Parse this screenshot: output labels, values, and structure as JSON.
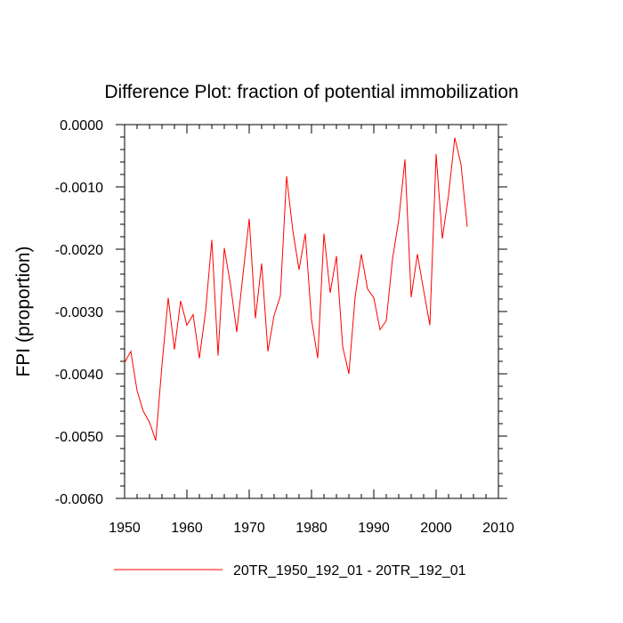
{
  "chart_data": {
    "type": "line",
    "title": "Difference Plot: fraction of potential immobilization",
    "xlabel": "",
    "ylabel": "FPI  (proportion)",
    "xlim": [
      1950,
      2010
    ],
    "ylim": [
      -0.006,
      0.0
    ],
    "xticks": [
      1950,
      1960,
      1970,
      1980,
      1990,
      2000,
      2010
    ],
    "yticks": [
      -0.006,
      -0.005,
      -0.004,
      -0.003,
      -0.002,
      -0.001,
      0.0
    ],
    "xtick_labels": [
      "1950",
      "1960",
      "1970",
      "1980",
      "1990",
      "2000",
      "2010"
    ],
    "ytick_labels": [
      "-0.0060",
      "-0.0050",
      "-0.0040",
      "-0.0030",
      "-0.0020",
      "-0.0010",
      "0.0000"
    ],
    "grid": false,
    "legend": "bottom",
    "series": [
      {
        "name": "20TR_1950_192_01 - 20TR_192_01",
        "color": "#ff0000",
        "x": [
          1950,
          1951,
          1952,
          1953,
          1954,
          1955,
          1956,
          1957,
          1958,
          1959,
          1960,
          1961,
          1962,
          1963,
          1964,
          1965,
          1966,
          1967,
          1968,
          1969,
          1970,
          1971,
          1972,
          1973,
          1974,
          1975,
          1976,
          1977,
          1978,
          1979,
          1980,
          1981,
          1982,
          1983,
          1984,
          1985,
          1986,
          1987,
          1988,
          1989,
          1990,
          1991,
          1992,
          1993,
          1994,
          1995,
          1996,
          1997,
          1998,
          1999,
          2000,
          2001,
          2002,
          2003,
          2004,
          2005
        ],
        "values": [
          -0.00382,
          -0.00364,
          -0.00427,
          -0.0046,
          -0.00478,
          -0.00507,
          -0.00386,
          -0.00278,
          -0.00361,
          -0.00283,
          -0.00322,
          -0.00305,
          -0.00375,
          -0.003,
          -0.00185,
          -0.00371,
          -0.00198,
          -0.00257,
          -0.00333,
          -0.00241,
          -0.00151,
          -0.00311,
          -0.00223,
          -0.00364,
          -0.00306,
          -0.00275,
          -0.00083,
          -0.0017,
          -0.00233,
          -0.00175,
          -0.00313,
          -0.00375,
          -0.00175,
          -0.0027,
          -0.00211,
          -0.00356,
          -0.004,
          -0.00277,
          -0.00208,
          -0.00264,
          -0.00278,
          -0.00329,
          -0.00315,
          -0.00216,
          -0.00153,
          -0.00056,
          -0.00277,
          -0.00208,
          -0.00266,
          -0.00322,
          -0.00047,
          -0.00183,
          -0.00113,
          -0.00021,
          -0.00064,
          -0.00164
        ]
      }
    ]
  }
}
